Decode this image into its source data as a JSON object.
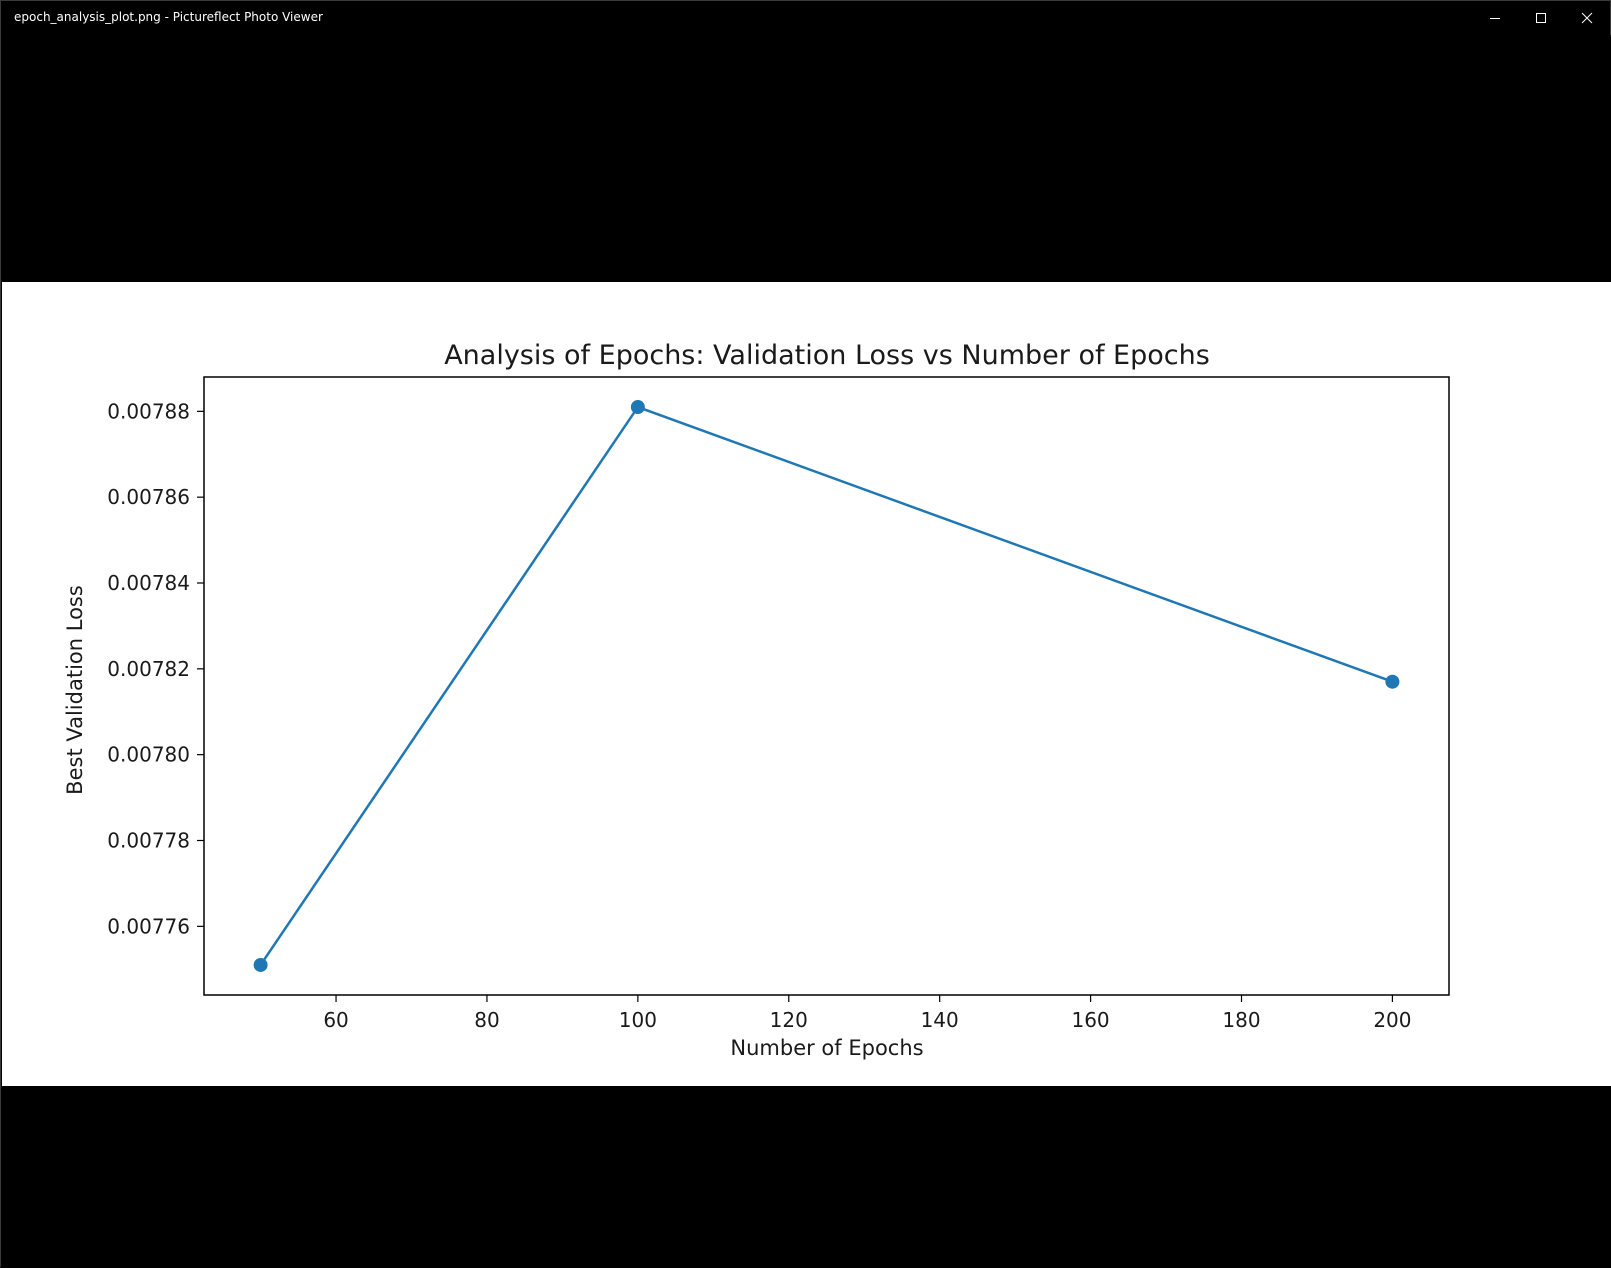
{
  "window": {
    "title": "epoch_analysis_plot.png - Pictureflect Photo Viewer",
    "controls": {
      "minimize": "minimize-icon",
      "maximize": "maximize-icon",
      "close": "close-icon"
    }
  },
  "chart_data": {
    "type": "line",
    "title": "Analysis of Epochs: Validation Loss vs Number of Epochs",
    "xlabel": "Number of Epochs",
    "ylabel": "Best Validation Loss",
    "x": [
      50,
      100,
      200
    ],
    "series": [
      {
        "values": [
          0.007751,
          0.007881,
          0.007817
        ],
        "color": "#1f77b4",
        "marker": "circle"
      }
    ],
    "xlim": [
      42.5,
      207.5
    ],
    "ylim": [
      0.007744,
      0.007888
    ],
    "xticks": [
      60,
      80,
      100,
      120,
      140,
      160,
      180,
      200
    ],
    "yticks": [
      0.00776,
      0.00778,
      0.0078,
      0.00782,
      0.00784,
      0.00786,
      0.00788
    ],
    "ytick_labels": [
      "0.00776",
      "0.00778",
      "0.00780",
      "0.00782",
      "0.00784",
      "0.00786",
      "0.00788"
    ],
    "grid": false,
    "legend": "none"
  }
}
